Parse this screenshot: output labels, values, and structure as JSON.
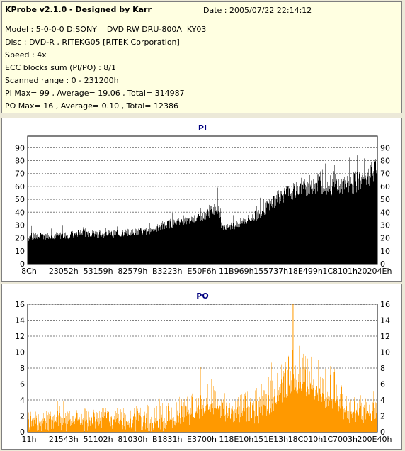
{
  "info": {
    "title": "KProbe v2.1.0 - Designed by Karr",
    "date": "Date : 2005/07/22 22:14:12",
    "lines": [
      "Model : 5-0-0-0 D:SONY    DVD RW DRU-800A  KY03",
      "Disc : DVD-R , RITEKG05 [RiTEK Corporation]",
      "Speed : 4x",
      "ECC blocks sum (PI/PO) : 8/1",
      "Scanned range : 0 - 231200h",
      "PI Max= 99 , Average= 19.06 , Total= 314987",
      "PO Max= 16 , Average= 0.10 , Total= 12386"
    ]
  },
  "colors": {
    "pi_bar": "#000000",
    "po_bar": "#ff9900",
    "title": "#00007f",
    "grid": "#7f7f7f"
  },
  "chart_data": [
    {
      "type": "bar",
      "title": "PI",
      "ylim": [
        0,
        99
      ],
      "yticks": [
        0,
        10,
        20,
        30,
        40,
        50,
        60,
        70,
        80,
        90
      ],
      "xticks": [
        "8Ch",
        "23052h",
        "53159h",
        "82579h",
        "B3223h",
        "E50F6h",
        "11B969h",
        "155737h",
        "18E499h",
        "1C8101h",
        "20204Eh"
      ],
      "x_range": [
        "0h",
        "231200h"
      ],
      "grid": true,
      "summary": {
        "max": 99,
        "average": 19.06,
        "total": 314987
      },
      "profile": [
        {
          "pos": 0.0,
          "base": 17,
          "peak": 30
        },
        {
          "pos": 0.06,
          "base": 19,
          "peak": 30
        },
        {
          "pos": 0.12,
          "base": 19,
          "peak": 30
        },
        {
          "pos": 0.16,
          "base": 21,
          "peak": 33
        },
        {
          "pos": 0.22,
          "base": 20,
          "peak": 30
        },
        {
          "pos": 0.28,
          "base": 21,
          "peak": 32
        },
        {
          "pos": 0.34,
          "base": 22,
          "peak": 33
        },
        {
          "pos": 0.4,
          "base": 27,
          "peak": 40
        },
        {
          "pos": 0.46,
          "base": 30,
          "peak": 42
        },
        {
          "pos": 0.5,
          "base": 33,
          "peak": 45
        },
        {
          "pos": 0.545,
          "base": 39,
          "peak": 60
        },
        {
          "pos": 0.555,
          "base": 26,
          "peak": 32
        },
        {
          "pos": 0.6,
          "base": 27,
          "peak": 40
        },
        {
          "pos": 0.66,
          "base": 34,
          "peak": 50
        },
        {
          "pos": 0.72,
          "base": 46,
          "peak": 70
        },
        {
          "pos": 0.78,
          "base": 52,
          "peak": 75
        },
        {
          "pos": 0.84,
          "base": 54,
          "peak": 91
        },
        {
          "pos": 0.9,
          "base": 52,
          "peak": 80
        },
        {
          "pos": 0.96,
          "base": 56,
          "peak": 90
        },
        {
          "pos": 1.0,
          "base": 62,
          "peak": 99
        }
      ]
    },
    {
      "type": "bar",
      "title": "PO",
      "ylim": [
        0,
        16
      ],
      "yticks": [
        0,
        2,
        4,
        6,
        8,
        10,
        12,
        14,
        16
      ],
      "xticks": [
        "11h",
        "21543h",
        "51102h",
        "81030h",
        "B1831h",
        "E3700h",
        "118E10h",
        "151E13h",
        "18C010h",
        "1C7003h",
        "200E40h"
      ],
      "x_range": [
        "0h",
        "231200h"
      ],
      "grid": true,
      "summary": {
        "max": 16,
        "average": 0.1,
        "total": 12386
      },
      "profile": [
        {
          "pos": 0.0,
          "base": 1,
          "peak": 4
        },
        {
          "pos": 0.1,
          "base": 1,
          "peak": 4
        },
        {
          "pos": 0.2,
          "base": 1,
          "peak": 5
        },
        {
          "pos": 0.3,
          "base": 1,
          "peak": 5
        },
        {
          "pos": 0.4,
          "base": 1,
          "peak": 6
        },
        {
          "pos": 0.48,
          "base": 2,
          "peak": 8
        },
        {
          "pos": 0.52,
          "base": 3,
          "peak": 10
        },
        {
          "pos": 0.58,
          "base": 2,
          "peak": 6
        },
        {
          "pos": 0.66,
          "base": 2,
          "peak": 9
        },
        {
          "pos": 0.72,
          "base": 4,
          "peak": 12
        },
        {
          "pos": 0.76,
          "base": 6,
          "peak": 16
        },
        {
          "pos": 0.82,
          "base": 5,
          "peak": 14
        },
        {
          "pos": 0.88,
          "base": 3,
          "peak": 12
        },
        {
          "pos": 0.92,
          "base": 2,
          "peak": 6
        },
        {
          "pos": 1.0,
          "base": 2,
          "peak": 8
        }
      ]
    }
  ]
}
